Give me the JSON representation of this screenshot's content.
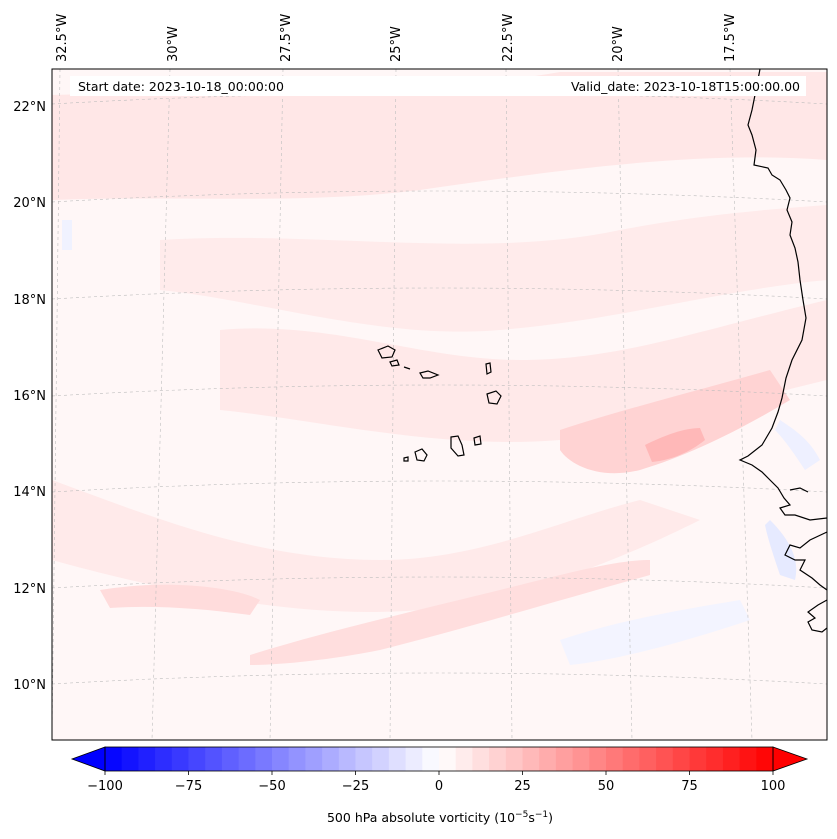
{
  "map": {
    "start_label": "Start date: 2023-10-18_00:00:00",
    "valid_label": "Valid_date: 2023-10-18T15:00:00.00",
    "lon_labels": [
      "32.5°W",
      "30°W",
      "27.5°W",
      "25°W",
      "22.5°W",
      "20°W",
      "17.5°W"
    ],
    "lat_labels": [
      "22°N",
      "20°N",
      "18°N",
      "16°N",
      "14°N",
      "12°N",
      "10°N"
    ],
    "field": "500 hPa absolute vorticity",
    "colors": {
      "negative_max": "#0000ff",
      "zero": "#ffffff",
      "positive_max": "#ff0000",
      "coastline": "#000000",
      "gridline": "#b0b0b0"
    }
  },
  "colorbar": {
    "min": -100,
    "max": 100,
    "tick_labels": [
      "−100",
      "−75",
      "−50",
      "−25",
      "0",
      "25",
      "50",
      "75",
      "100"
    ],
    "label_text": "500 hPa absolute vorticity (10",
    "label_exp1": "−5",
    "label_mid": "s",
    "label_exp2": "−1",
    "label_end": ")"
  }
}
